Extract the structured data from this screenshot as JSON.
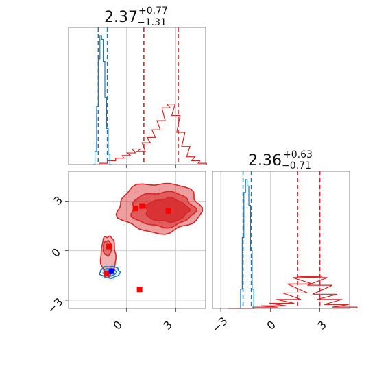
{
  "chart_data": {
    "type": "corner",
    "colors": {
      "blue": "#1f77b4",
      "red": "#d62728",
      "grid": "#c8c8c8",
      "frame": "#666666"
    },
    "params": [
      {
        "value": "2.37",
        "plus": "+0.77",
        "minus": "−1.31",
        "range": [
          -3.5,
          4.8
        ],
        "quantiles_blue": [
          -1.7,
          -1.15
        ],
        "quantiles_red": [
          1.06,
          3.14
        ]
      },
      {
        "value": "2.36",
        "plus": "+0.63",
        "minus": "−0.71",
        "range": [
          -3.5,
          4.8
        ],
        "quantiles_blue": [
          -1.65,
          -1.15
        ],
        "quantiles_red": [
          1.65,
          3.0
        ]
      }
    ],
    "hist_top_blue": [
      [
        -1.95,
        0.0
      ],
      [
        -1.85,
        0.1
      ],
      [
        -1.75,
        0.45
      ],
      [
        -1.65,
        0.82
      ],
      [
        -1.55,
        1.0
      ],
      [
        -1.45,
        0.97
      ],
      [
        -1.35,
        0.8
      ],
      [
        -1.25,
        0.52
      ],
      [
        -1.15,
        0.28
      ],
      [
        -1.05,
        0.08
      ],
      [
        -0.95,
        0.0
      ]
    ],
    "hist_top_red": [
      [
        -1.4,
        0.01
      ],
      [
        -0.9,
        0.03
      ],
      [
        -0.4,
        0.05
      ],
      [
        0.0,
        0.07
      ],
      [
        0.3,
        0.09
      ],
      [
        0.6,
        0.12
      ],
      [
        0.9,
        0.1
      ],
      [
        1.2,
        0.17
      ],
      [
        1.5,
        0.21
      ],
      [
        1.8,
        0.27
      ],
      [
        2.1,
        0.34
      ],
      [
        2.4,
        0.44
      ],
      [
        2.7,
        0.47
      ],
      [
        3.0,
        0.38
      ],
      [
        3.3,
        0.25
      ],
      [
        3.6,
        0.14
      ],
      [
        3.9,
        0.06
      ],
      [
        4.2,
        0.03
      ],
      [
        4.6,
        0.01
      ]
    ],
    "hist_right_blue": [
      [
        -1.85,
        0.0
      ],
      [
        -1.75,
        0.15
      ],
      [
        -1.65,
        0.55
      ],
      [
        -1.55,
        0.9
      ],
      [
        -1.45,
        1.0
      ],
      [
        -1.35,
        0.95
      ],
      [
        -1.25,
        0.8
      ],
      [
        -1.15,
        0.45
      ],
      [
        -1.05,
        0.15
      ],
      [
        -0.95,
        0.0
      ]
    ],
    "hist_right_red": [
      [
        -1.8,
        0.0
      ],
      [
        -0.3,
        0.01
      ],
      [
        0.2,
        0.02
      ],
      [
        0.7,
        0.04
      ],
      [
        1.1,
        0.07
      ],
      [
        1.5,
        0.12
      ],
      [
        1.8,
        0.19
      ],
      [
        2.1,
        0.24
      ],
      [
        2.4,
        0.25
      ],
      [
        2.7,
        0.24
      ],
      [
        3.0,
        0.18
      ],
      [
        3.3,
        0.11
      ],
      [
        3.6,
        0.07
      ],
      [
        4.0,
        0.03
      ],
      [
        4.5,
        0.01
      ]
    ],
    "red_square_markers": [
      [
        0.55,
        2.55
      ],
      [
        0.95,
        2.7
      ],
      [
        2.55,
        2.4
      ],
      [
        -1.05,
        0.25
      ],
      [
        -1.2,
        -1.4
      ],
      [
        0.8,
        -2.35
      ]
    ],
    "blue_square_markers": [
      [
        -0.9,
        -1.25
      ]
    ],
    "red_contours": [
      {
        "level": 0,
        "cx": 2.0,
        "cy": 2.6,
        "rx": 2.5,
        "ry": 1.5
      },
      {
        "level": 1,
        "cx": 2.2,
        "cy": 2.5,
        "rx": 1.9,
        "ry": 1.05
      },
      {
        "level": 2,
        "cx": 2.45,
        "cy": 2.45,
        "rx": 1.3,
        "ry": 0.7
      }
    ],
    "red_lower_contours": [
      {
        "level": 0,
        "cx": -1.1,
        "cy": -0.3,
        "rx": 0.45,
        "ry": 1.2
      },
      {
        "level": 1,
        "cx": -1.15,
        "cy": 0.15,
        "rx": 0.25,
        "ry": 0.45
      }
    ],
    "blue_contours": [
      {
        "level": 0,
        "cx": -1.0,
        "cy": -1.3,
        "rx": 0.6,
        "ry": 0.35
      },
      {
        "level": 1,
        "cx": -1.0,
        "cy": -1.3,
        "rx": 0.38,
        "ry": 0.22
      },
      {
        "level": 2,
        "cx": -1.0,
        "cy": -1.3,
        "rx": 0.18,
        "ry": 0.1
      }
    ],
    "x_ticks": [
      "0",
      "3"
    ],
    "y_ticks": [
      "−3",
      "0",
      "3"
    ],
    "right_x_ticks": [
      "−3",
      "0",
      "3"
    ],
    "grid": true
  }
}
